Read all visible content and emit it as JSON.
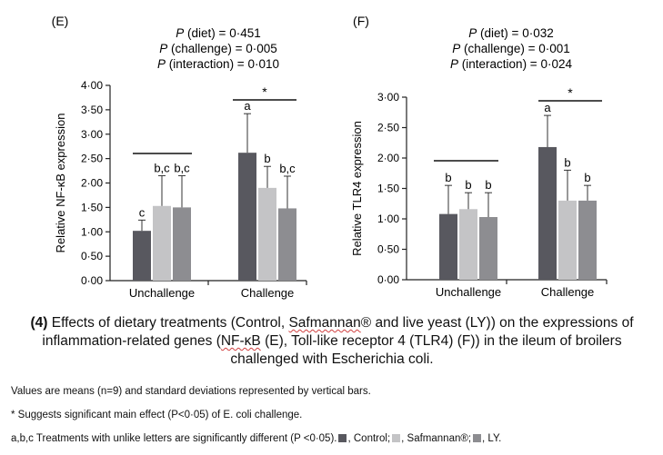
{
  "chart_data": [
    {
      "type": "bar",
      "panel_label": "(E)",
      "stats": [
        "P (diet) = 0·451",
        "P (challenge) = 0·005",
        "P (interaction) = 0·010"
      ],
      "ylabel": "Relative NF-κB expression",
      "ylim": [
        0,
        4
      ],
      "yticks": [
        "0·00",
        "0·50",
        "1·00",
        "1·50",
        "2·00",
        "2·50",
        "3·00",
        "3·50",
        "4·00"
      ],
      "categories": [
        "Unchallenge",
        "Challenge"
      ],
      "series": [
        {
          "values": [
            1.02,
            2.62
          ],
          "sd": [
            0.22,
            0.8
          ],
          "letters": [
            "c",
            "a"
          ]
        },
        {
          "values": [
            1.53,
            1.9
          ],
          "sd": [
            0.62,
            0.44
          ],
          "letters": [
            "b,c",
            "b"
          ]
        },
        {
          "values": [
            1.5,
            1.48
          ],
          "sd": [
            0.65,
            0.66
          ],
          "letters": [
            "b,c",
            "b,c"
          ]
        }
      ],
      "significance": [
        {
          "category": "Unchallenge",
          "mark": ""
        },
        {
          "category": "Challenge",
          "mark": "*"
        }
      ]
    },
    {
      "type": "bar",
      "panel_label": "(F)",
      "stats": [
        "P (diet) = 0·032",
        "P (challenge) = 0·001",
        "P (interaction) = 0·024"
      ],
      "ylabel": "Relative TLR4 expression",
      "ylim": [
        0,
        3
      ],
      "yticks": [
        "0·00",
        "0·50",
        "1·00",
        "1·50",
        "2·00",
        "2·50",
        "3·00"
      ],
      "categories": [
        "Unchallenge",
        "Challenge"
      ],
      "series": [
        {
          "values": [
            1.08,
            2.18
          ],
          "sd": [
            0.47,
            0.52
          ],
          "letters": [
            "b",
            "a"
          ]
        },
        {
          "values": [
            1.16,
            1.3
          ],
          "sd": [
            0.27,
            0.5
          ],
          "letters": [
            "b",
            "b"
          ]
        },
        {
          "values": [
            1.03,
            1.3
          ],
          "sd": [
            0.4,
            0.25
          ],
          "letters": [
            "b",
            "b"
          ]
        }
      ],
      "significance": [
        {
          "category": "Unchallenge",
          "mark": ""
        },
        {
          "category": "Challenge",
          "mark": "*"
        }
      ]
    }
  ],
  "colors": {
    "control": "#58585f",
    "safmannan": "#c4c4c6",
    "ly": "#8d8d91"
  },
  "caption": {
    "number": "(4)",
    "part1": " Effects of dietary treatments (Control, ",
    "brand": "Safmannan",
    "reg": "®",
    "part2": " and live yeast (LY)) on the expressions of inflammation-related genes (",
    "nfkb": "NF-κB",
    "part3": " (E), Toll-like receptor 4 (TLR4) (F)) in the ileum of broilers challenged with Escherichia coli."
  },
  "notes": {
    "values": "Values are means (n=9) and standard deviations represented by vertical bars.",
    "significance": "* Suggests significant main effect (P<0·05) of E. coli challenge.",
    "letters": "a,b,c Treatments with unlike letters are significantly different (P <0·05).",
    "control": ", Control;",
    "safmannan": ", Safmannan®;",
    "ly": ", LY."
  }
}
